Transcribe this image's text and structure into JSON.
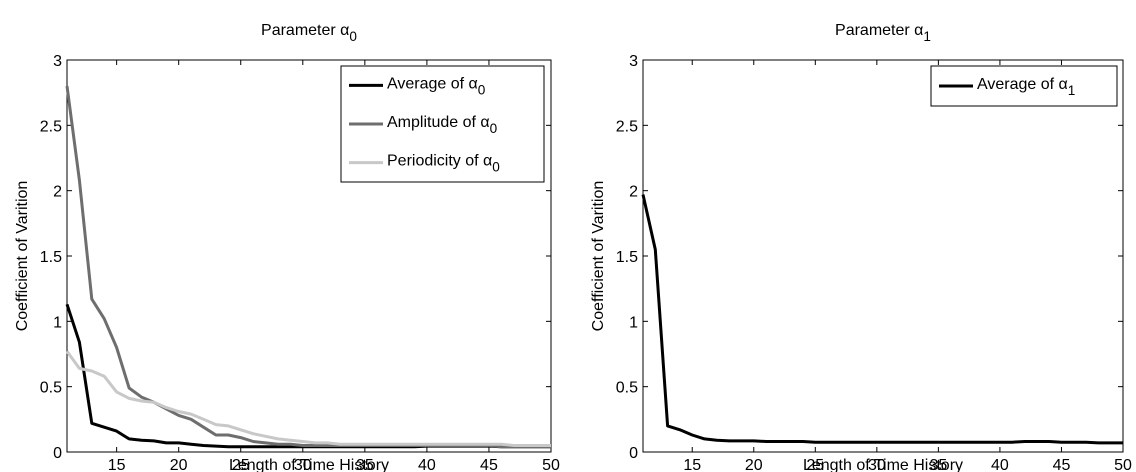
{
  "chart_data": [
    {
      "type": "line",
      "title": {
        "base": "Parameter ",
        "greek": "α",
        "sub": "0"
      },
      "xlabel": "Length of Time History",
      "ylabel": "Coefficient of Varition",
      "xlim": [
        11,
        50
      ],
      "ylim": [
        0,
        3
      ],
      "xticks": [
        "15",
        "20",
        "25",
        "30",
        "35",
        "40",
        "45",
        "50"
      ],
      "yticks": [
        "0",
        "0.5",
        "1",
        "1.5",
        "2",
        "2.5",
        "3"
      ],
      "grid": false,
      "legend_position": "top-right",
      "x": [
        11,
        12,
        13,
        14,
        15,
        16,
        17,
        18,
        19,
        20,
        21,
        22,
        23,
        24,
        25,
        26,
        27,
        28,
        29,
        30,
        31,
        32,
        33,
        34,
        35,
        36,
        37,
        38,
        39,
        40,
        41,
        42,
        43,
        44,
        45,
        46,
        47,
        48,
        49,
        50
      ],
      "series": [
        {
          "label": {
            "base": "Average of ",
            "greek": "α",
            "sub": "0"
          },
          "color": "#000000",
          "values": [
            1.13,
            0.84,
            0.22,
            0.19,
            0.16,
            0.1,
            0.09,
            0.085,
            0.07,
            0.07,
            0.06,
            0.05,
            0.045,
            0.04,
            0.04,
            0.04,
            0.04,
            0.04,
            0.04,
            0.04,
            0.04,
            0.04,
            0.04,
            0.04,
            0.04,
            0.04,
            0.04,
            0.04,
            0.04,
            0.045,
            0.045,
            0.045,
            0.045,
            0.045,
            0.045,
            0.04,
            0.04,
            0.04,
            0.04,
            0.04
          ]
        },
        {
          "label": {
            "base": "Amplitude of ",
            "greek": "α",
            "sub": "0"
          },
          "color": "#6e6e6e",
          "values": [
            2.8,
            2.08,
            1.17,
            1.02,
            0.8,
            0.49,
            0.42,
            0.38,
            0.33,
            0.28,
            0.25,
            0.19,
            0.13,
            0.13,
            0.11,
            0.08,
            0.07,
            0.06,
            0.06,
            0.05,
            0.05,
            0.05,
            0.05,
            0.05,
            0.05,
            0.05,
            0.05,
            0.05,
            0.05,
            0.05,
            0.05,
            0.05,
            0.05,
            0.05,
            0.05,
            0.04,
            0.04,
            0.04,
            0.04,
            0.04
          ]
        },
        {
          "label": {
            "base": "Periodicity of ",
            "greek": "α",
            "sub": "0"
          },
          "color": "#c8c8c8",
          "values": [
            0.77,
            0.64,
            0.62,
            0.58,
            0.46,
            0.41,
            0.39,
            0.38,
            0.34,
            0.31,
            0.29,
            0.25,
            0.21,
            0.2,
            0.17,
            0.14,
            0.12,
            0.1,
            0.09,
            0.08,
            0.07,
            0.07,
            0.06,
            0.06,
            0.06,
            0.06,
            0.06,
            0.06,
            0.06,
            0.06,
            0.06,
            0.06,
            0.06,
            0.06,
            0.06,
            0.06,
            0.05,
            0.05,
            0.05,
            0.05
          ]
        }
      ]
    },
    {
      "type": "line",
      "title": {
        "base": "Parameter ",
        "greek": "α",
        "sub": "1"
      },
      "xlabel": "Length of Time History",
      "ylabel": "Coefficient of Varition",
      "xlim": [
        11,
        50
      ],
      "ylim": [
        0,
        3
      ],
      "xticks": [
        "15",
        "20",
        "25",
        "30",
        "35",
        "40",
        "45",
        "50"
      ],
      "yticks": [
        "0",
        "0.5",
        "1",
        "1.5",
        "2",
        "2.5",
        "3"
      ],
      "grid": false,
      "legend_position": "top-right",
      "x": [
        11,
        12,
        13,
        14,
        15,
        16,
        17,
        18,
        19,
        20,
        21,
        22,
        23,
        24,
        25,
        26,
        27,
        28,
        29,
        30,
        31,
        32,
        33,
        34,
        35,
        36,
        37,
        38,
        39,
        40,
        41,
        42,
        43,
        44,
        45,
        46,
        47,
        48,
        49,
        50
      ],
      "series": [
        {
          "label": {
            "base": "Average of ",
            "greek": "α",
            "sub": "1"
          },
          "color": "#000000",
          "values": [
            1.97,
            1.55,
            0.2,
            0.17,
            0.13,
            0.1,
            0.09,
            0.085,
            0.085,
            0.085,
            0.08,
            0.08,
            0.08,
            0.08,
            0.075,
            0.075,
            0.075,
            0.075,
            0.075,
            0.075,
            0.075,
            0.075,
            0.075,
            0.075,
            0.075,
            0.075,
            0.075,
            0.075,
            0.075,
            0.075,
            0.075,
            0.08,
            0.08,
            0.08,
            0.075,
            0.075,
            0.075,
            0.07,
            0.07,
            0.07
          ]
        }
      ]
    }
  ]
}
